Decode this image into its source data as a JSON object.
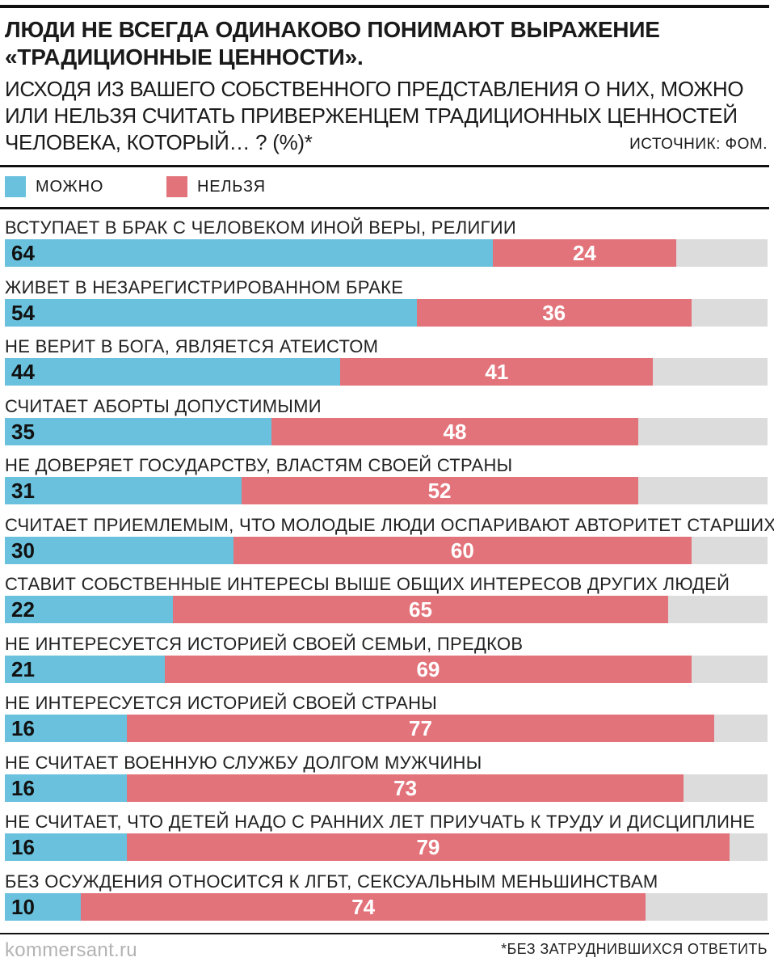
{
  "header": {
    "title": "ЛЮДИ НЕ ВСЕГДА ОДИНАКОВО ПОНИМАЮТ ВЫРАЖЕНИЕ «ТРАДИЦИОННЫЕ ЦЕННОСТИ».",
    "subtitle": "ИСХОДЯ ИЗ ВАШЕГО СОБСТВЕННОГО ПРЕДСТАВЛЕНИЯ О НИХ, МОЖНО ИЛИ НЕЛЬЗЯ СЧИТАТЬ ПРИВЕРЖЕНЦЕМ ТРАДИЦИОННЫХ ЦЕННОСТЕЙ ЧЕЛОВЕКА, КОТОРЫЙ… ? (%)*",
    "source": "ИСТОЧНИК: ФОМ."
  },
  "legend": {
    "yes_label": "МОЖНО",
    "no_label": "НЕЛЬЗЯ"
  },
  "colors": {
    "yes": "#69c1dd",
    "no": "#e3737a",
    "remainder": "#dcdcdc"
  },
  "chart_data": {
    "type": "bar",
    "orientation": "horizontal",
    "stacked": true,
    "scale_max": 100,
    "categories": [
      "ВСТУПАЕТ В БРАК С ЧЕЛОВЕКОМ ИНОЙ ВЕРЫ, РЕЛИГИИ",
      "ЖИВЕТ В НЕЗАРЕГИСТРИРОВАННОМ БРАКЕ",
      "НЕ ВЕРИТ В БОГА, ЯВЛЯЕТСЯ АТЕИСТОМ",
      "СЧИТАЕТ АБОРТЫ ДОПУСТИМЫМИ",
      "НЕ ДОВЕРЯЕТ ГОСУДАРСТВУ, ВЛАСТЯМ СВОЕЙ СТРАНЫ",
      "СЧИТАЕТ ПРИЕМЛЕМЫМ, ЧТО МОЛОДЫЕ ЛЮДИ ОСПАРИВАЮТ АВТОРИТЕТ СТАРШИХ",
      "СТАВИТ СОБСТВЕННЫЕ ИНТЕРЕСЫ ВЫШЕ ОБЩИХ ИНТЕРЕСОВ ДРУГИХ ЛЮДЕЙ",
      "НЕ ИНТЕРЕСУЕТСЯ ИСТОРИЕЙ СВОЕЙ СЕМЬИ, ПРЕДКОВ",
      "НЕ ИНТЕРЕСУЕТСЯ ИСТОРИЕЙ СВОЕЙ СТРАНЫ",
      "НЕ СЧИТАЕТ ВОЕННУЮ СЛУЖБУ ДОЛГОМ МУЖЧИНЫ",
      "НЕ СЧИТАЕТ, ЧТО ДЕТЕЙ НАДО С РАННИХ ЛЕТ ПРИУЧАТЬ К ТРУДУ И ДИСЦИПЛИНЕ",
      "БЕЗ ОСУЖДЕНИЯ ОТНОСИТСЯ К ЛГБТ, СЕКСУАЛЬНЫМ МЕНЬШИНСТВАМ"
    ],
    "series": [
      {
        "name": "МОЖНО",
        "values": [
          64,
          54,
          44,
          35,
          31,
          30,
          22,
          21,
          16,
          16,
          16,
          10
        ]
      },
      {
        "name": "НЕЛЬЗЯ",
        "values": [
          24,
          36,
          41,
          48,
          52,
          60,
          65,
          69,
          77,
          73,
          79,
          74
        ]
      }
    ]
  },
  "footer": {
    "credit": "kommersant.ru",
    "footnote": "*БЕЗ ЗАТРУДНИВШИХСЯ ОТВЕТИТЬ"
  }
}
